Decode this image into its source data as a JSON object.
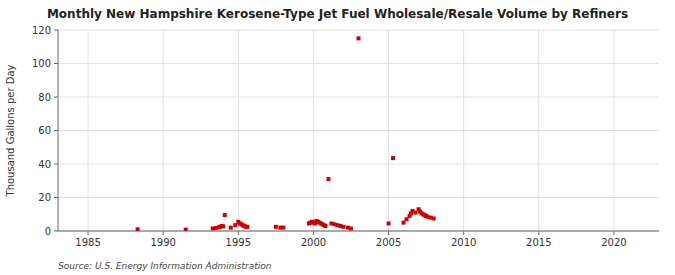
{
  "chart_data": {
    "type": "scatter",
    "title": "Monthly New Hampshire Kerosene-Type Jet Fuel Wholesale/Resale Volume by Refiners",
    "ylabel": "Thousand Gallons per Day",
    "annotation": "Source: U.S. Energy Information Administration",
    "color": "#cc0000",
    "marker": "square",
    "grid": true,
    "xlim": [
      1983,
      2023
    ],
    "ylim": [
      0,
      120
    ],
    "xticks": [
      1985,
      1990,
      1995,
      2000,
      2005,
      2010,
      2015,
      2020
    ],
    "yticks": [
      0,
      20,
      40,
      60,
      80,
      100,
      120
    ],
    "x": [
      1988.3,
      1991.5,
      1993.3,
      1993.5,
      1993.7,
      1993.8,
      1993.9,
      1994.0,
      1994.1,
      1994.5,
      1994.8,
      1995.0,
      1995.1,
      1995.2,
      1995.3,
      1995.4,
      1995.5,
      1995.6,
      1997.5,
      1997.8,
      1998.0,
      1999.7,
      1999.8,
      1999.9,
      2000.0,
      2000.1,
      2000.2,
      2000.3,
      2000.4,
      2000.5,
      2000.6,
      2000.7,
      2000.8,
      2001.0,
      2001.2,
      2001.4,
      2001.6,
      2001.8,
      2002.0,
      2002.3,
      2002.5,
      2003.0,
      2005.0,
      2005.3,
      2006.0,
      2006.2,
      2006.4,
      2006.5,
      2006.6,
      2006.8,
      2007.0,
      2007.1,
      2007.2,
      2007.3,
      2007.4,
      2007.5,
      2007.6,
      2007.8,
      2008.0
    ],
    "values": [
      1.0,
      0.8,
      1.5,
      1.8,
      2.2,
      2.5,
      3.0,
      2.8,
      9.5,
      2.0,
      3.5,
      5.5,
      4.5,
      4.0,
      3.5,
      3.0,
      2.5,
      2.5,
      2.5,
      2.0,
      2.0,
      4.5,
      5.0,
      5.5,
      5.0,
      4.5,
      6.0,
      5.5,
      5.0,
      4.5,
      4.0,
      3.5,
      3.0,
      31.0,
      4.5,
      4.0,
      3.5,
      3.0,
      2.5,
      2.0,
      1.5,
      115.0,
      4.5,
      43.5,
      5.0,
      7.0,
      9.0,
      10.5,
      12.0,
      11.0,
      13.0,
      11.5,
      10.5,
      10.0,
      9.5,
      9.0,
      8.5,
      8.0,
      7.5
    ]
  }
}
